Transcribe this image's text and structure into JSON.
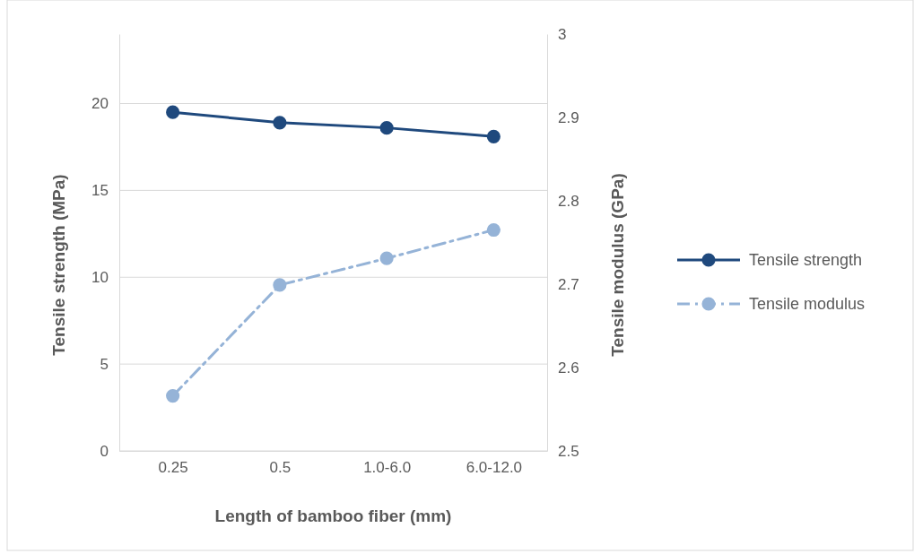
{
  "chart_data": {
    "type": "line",
    "xlabel": "Length of bamboo fiber (mm)",
    "ylabel": "Tensile strength (MPa)",
    "y2label": "Tensile modulus (GPa)",
    "categories": [
      "0.25",
      "0.5",
      "1.0-6.0",
      "6.0-12.0"
    ],
    "series": [
      {
        "name": "Tensile strength",
        "color": "#1f497d",
        "values": [
          19.5,
          18.9,
          18.6,
          18.1
        ],
        "line_style": "solid"
      },
      {
        "name": "Tensile modulus",
        "color": "#95b3d7",
        "values": [
          2.566,
          2.699,
          2.731,
          2.765
        ],
        "axis": "y2",
        "line_style": "dashed"
      }
    ],
    "ylim": [
      0,
      24
    ],
    "yticks": [
      0,
      5,
      10,
      15,
      20
    ],
    "y2lim": [
      2.5,
      3
    ],
    "y2ticks": [
      2.5,
      2.6,
      2.7,
      2.8,
      2.9,
      3
    ],
    "grid": "y",
    "legend": "right",
    "marker": "circle"
  }
}
